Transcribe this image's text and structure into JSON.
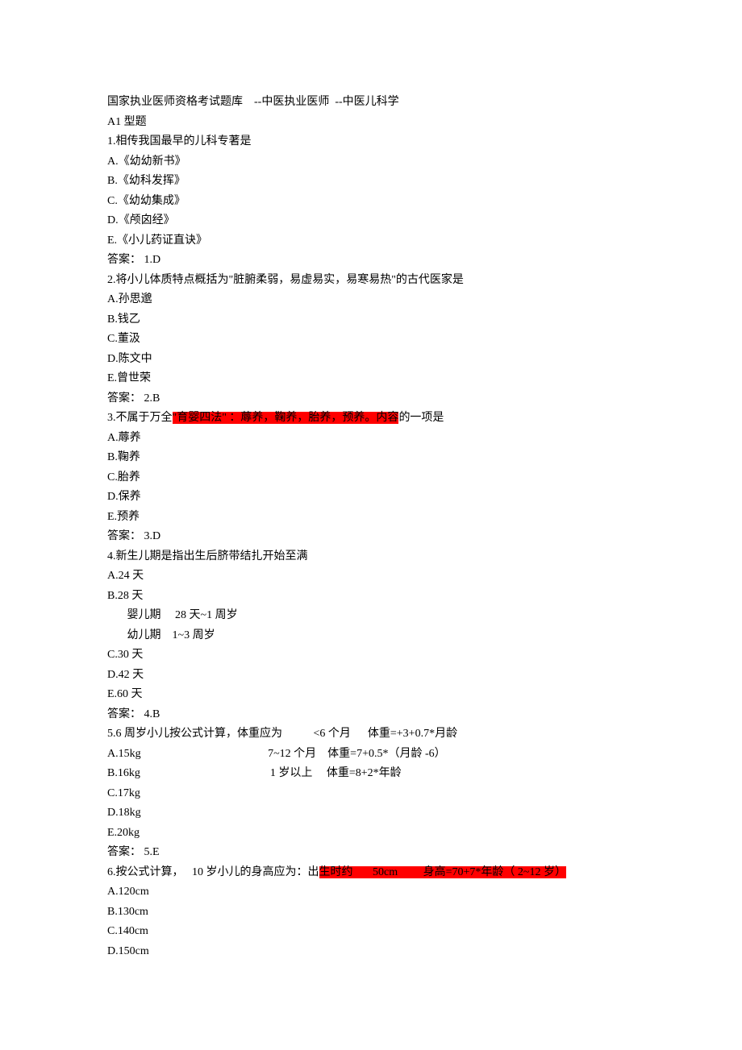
{
  "header": {
    "prefix": "国家执业医师资格考试题库",
    "mid": "--中医执业医师",
    "suffix": "--中医儿科学"
  },
  "section_type": "A1 型题",
  "q1": {
    "stem": "1.相传我国最早的儿科专著是",
    "A": "A.《幼幼新书》",
    "B": "B.《幼科发挥》",
    "C": "C.《幼幼集成》",
    "D": "D.《颅囟经》",
    "E": "E.《小儿药证直诀》",
    "ans": "答案： 1.D"
  },
  "q2": {
    "stem": "2.将小儿体质特点概括为\"脏腑柔弱，易虚易实，易寒易热\"的古代医家是",
    "A": "A.孙思邈",
    "B": "B.钱乙",
    "C": "C.董汲",
    "D": "D.陈文中",
    "E": "E.曾世荣",
    "ans": "答案： 2.B"
  },
  "q3": {
    "stem_pre": "3.不属于万全",
    "stem_hl": "\"育婴四法\" ：蓐养，鞠养，胎养，预养。内容",
    "stem_post": "的一项是",
    "A": "A.蓐养",
    "B": "B.鞠养",
    "C": "C.胎养",
    "D": "D.保养",
    "E": "E.预养",
    "ans": "答案： 3.D"
  },
  "q4": {
    "stem": "4.新生儿期是指出生后脐带结扎开始至满",
    "A": "A.24 天",
    "B": "B.28 天",
    "note1": "       婴儿期     28 天~1 周岁",
    "note2": "       幼儿期    1~3 周岁",
    "C": "C.30 天",
    "D": "D.42 天",
    "E": "E.60 天",
    "ans": "答案： 4.B"
  },
  "q5": {
    "stem": "5.6 周岁小儿按公式计算，体重应为           <6 个月      体重=+3+0.7*月龄",
    "A": "A.15kg                                             7~12 个月    体重=7+0.5*（月龄 -6）",
    "B": "B.16kg                                              1 岁以上     体重=8+2*年龄",
    "C": "C.17kg",
    "D": "D.18kg",
    "E": "E.20kg",
    "ans": "答案： 5.E"
  },
  "q6": {
    "stem_pre": "6.按公式计算，   10 岁小儿的身高应为：出",
    "stem_hl": "生时约       50cm         身高=70+7*年龄（ 2~12 岁）",
    "A": "A.120cm",
    "B": "B.130cm",
    "C": "C.140cm",
    "D": "D.150cm"
  },
  "colors": {
    "highlight": "#ff0000",
    "text": "#000000",
    "background": "#ffffff"
  }
}
